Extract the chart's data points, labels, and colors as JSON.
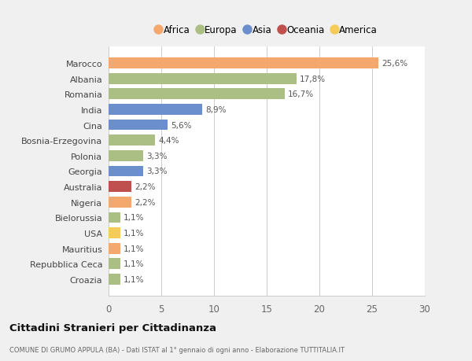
{
  "countries": [
    "Marocco",
    "Albania",
    "Romania",
    "India",
    "Cina",
    "Bosnia-Erzegovina",
    "Polonia",
    "Georgia",
    "Australia",
    "Nigeria",
    "Bielorussia",
    "USA",
    "Mauritius",
    "Repubblica Ceca",
    "Croazia"
  ],
  "values": [
    25.6,
    17.8,
    16.7,
    8.9,
    5.6,
    4.4,
    3.3,
    3.3,
    2.2,
    2.2,
    1.1,
    1.1,
    1.1,
    1.1,
    1.1
  ],
  "labels": [
    "25,6%",
    "17,8%",
    "16,7%",
    "8,9%",
    "5,6%",
    "4,4%",
    "3,3%",
    "3,3%",
    "2,2%",
    "2,2%",
    "1,1%",
    "1,1%",
    "1,1%",
    "1,1%",
    "1,1%"
  ],
  "continents": [
    "Africa",
    "Europa",
    "Europa",
    "Asia",
    "Asia",
    "Europa",
    "Europa",
    "Asia",
    "Oceania",
    "Africa",
    "Europa",
    "America",
    "Africa",
    "Europa",
    "Europa"
  ],
  "continent_colors": {
    "Africa": "#F5A86E",
    "Europa": "#ABBE84",
    "Asia": "#6B8FCC",
    "Oceania": "#C0504D",
    "America": "#F5CC5A"
  },
  "legend_order": [
    "Africa",
    "Europa",
    "Asia",
    "Oceania",
    "America"
  ],
  "title": "Cittadini Stranieri per Cittadinanza",
  "subtitle": "COMUNE DI GRUMO APPULA (BA) - Dati ISTAT al 1° gennaio di ogni anno - Elaborazione TUTTITALIA.IT",
  "xlim": [
    0,
    30
  ],
  "xticks": [
    0,
    5,
    10,
    15,
    20,
    25,
    30
  ],
  "background_color": "#f0f0f0",
  "plot_background": "#ffffff",
  "grid_color": "#cccccc"
}
